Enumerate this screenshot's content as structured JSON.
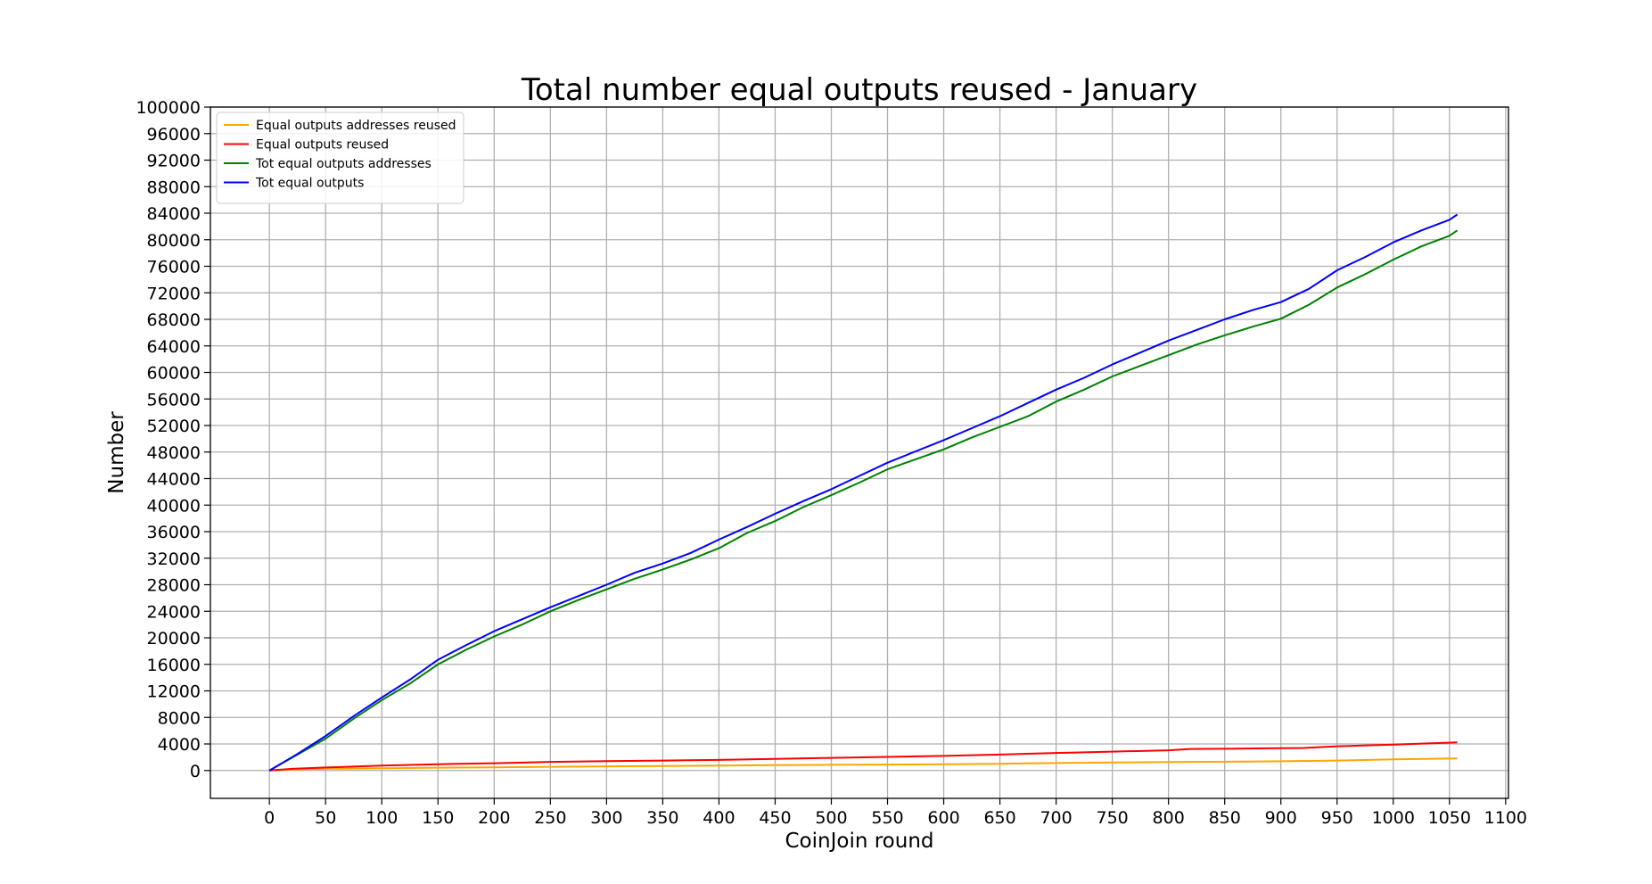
{
  "chart_data": {
    "type": "line",
    "title": "Total number equal outputs reused - January",
    "xlabel": "CoinJoin round",
    "ylabel": "Number",
    "xlim": [
      -52.5,
      1102.5
    ],
    "ylim": [
      -4200,
      100000
    ],
    "xticks": [
      0,
      50,
      100,
      150,
      200,
      250,
      300,
      350,
      400,
      450,
      500,
      550,
      600,
      650,
      700,
      750,
      800,
      850,
      900,
      950,
      1000,
      1050,
      1100
    ],
    "yticks": [
      0,
      4000,
      8000,
      12000,
      16000,
      20000,
      24000,
      28000,
      32000,
      36000,
      40000,
      44000,
      48000,
      52000,
      56000,
      60000,
      64000,
      68000,
      72000,
      76000,
      80000,
      84000,
      88000,
      92000,
      96000,
      100000
    ],
    "grid": true,
    "legend_position": "top-left",
    "series": [
      {
        "name": "Equal outputs addresses reused",
        "color": "#ffa500",
        "x": [
          0,
          20,
          50,
          100,
          150,
          200,
          250,
          300,
          350,
          400,
          450,
          500,
          550,
          600,
          650,
          700,
          750,
          800,
          850,
          900,
          950,
          1000,
          1057
        ],
        "y": [
          0,
          150,
          250,
          350,
          420,
          480,
          560,
          630,
          680,
          730,
          800,
          850,
          890,
          950,
          1020,
          1120,
          1200,
          1270,
          1330,
          1390,
          1500,
          1680,
          1820
        ]
      },
      {
        "name": "Equal outputs reused",
        "color": "#ff0000",
        "x": [
          0,
          20,
          50,
          100,
          150,
          200,
          250,
          300,
          350,
          400,
          450,
          500,
          550,
          600,
          650,
          700,
          750,
          800,
          820,
          850,
          900,
          920,
          950,
          1000,
          1057
        ],
        "y": [
          0,
          250,
          450,
          750,
          950,
          1100,
          1300,
          1420,
          1500,
          1600,
          1750,
          1900,
          2050,
          2200,
          2400,
          2650,
          2850,
          3050,
          3250,
          3280,
          3350,
          3400,
          3650,
          3900,
          4250
        ]
      },
      {
        "name": "Tot equal outputs addresses",
        "color": "#008000",
        "x": [
          0,
          25,
          50,
          75,
          100,
          125,
          150,
          175,
          200,
          225,
          250,
          275,
          300,
          325,
          350,
          375,
          400,
          425,
          450,
          475,
          500,
          525,
          550,
          575,
          600,
          625,
          650,
          675,
          700,
          725,
          750,
          775,
          800,
          825,
          850,
          875,
          900,
          925,
          950,
          975,
          1000,
          1025,
          1050,
          1057
        ],
        "y": [
          0,
          2400,
          4800,
          7800,
          10600,
          13100,
          16000,
          18200,
          20200,
          22000,
          24000,
          25700,
          27300,
          28900,
          30300,
          31800,
          33500,
          35800,
          37600,
          39700,
          41500,
          43400,
          45400,
          46900,
          48400,
          50200,
          51800,
          53400,
          55600,
          57400,
          59400,
          61000,
          62600,
          64200,
          65600,
          66900,
          68100,
          70200,
          72800,
          74800,
          77000,
          79000,
          80600,
          81400
        ]
      },
      {
        "name": "Tot equal outputs",
        "color": "#0000ff",
        "x": [
          0,
          25,
          50,
          75,
          100,
          125,
          150,
          175,
          200,
          225,
          250,
          275,
          300,
          325,
          350,
          375,
          400,
          425,
          450,
          475,
          500,
          525,
          550,
          575,
          600,
          625,
          650,
          675,
          700,
          725,
          750,
          775,
          800,
          825,
          850,
          875,
          900,
          925,
          950,
          975,
          1000,
          1025,
          1050,
          1057
        ],
        "y": [
          0,
          2500,
          5200,
          8200,
          11000,
          13700,
          16700,
          18900,
          21000,
          22800,
          24600,
          26300,
          28000,
          29800,
          31200,
          32800,
          34800,
          36700,
          38700,
          40600,
          42400,
          44400,
          46400,
          48100,
          49800,
          51600,
          53400,
          55400,
          57400,
          59200,
          61200,
          63000,
          64800,
          66400,
          68000,
          69400,
          70600,
          72600,
          75400,
          77400,
          79600,
          81400,
          83000,
          83800
        ]
      }
    ]
  }
}
